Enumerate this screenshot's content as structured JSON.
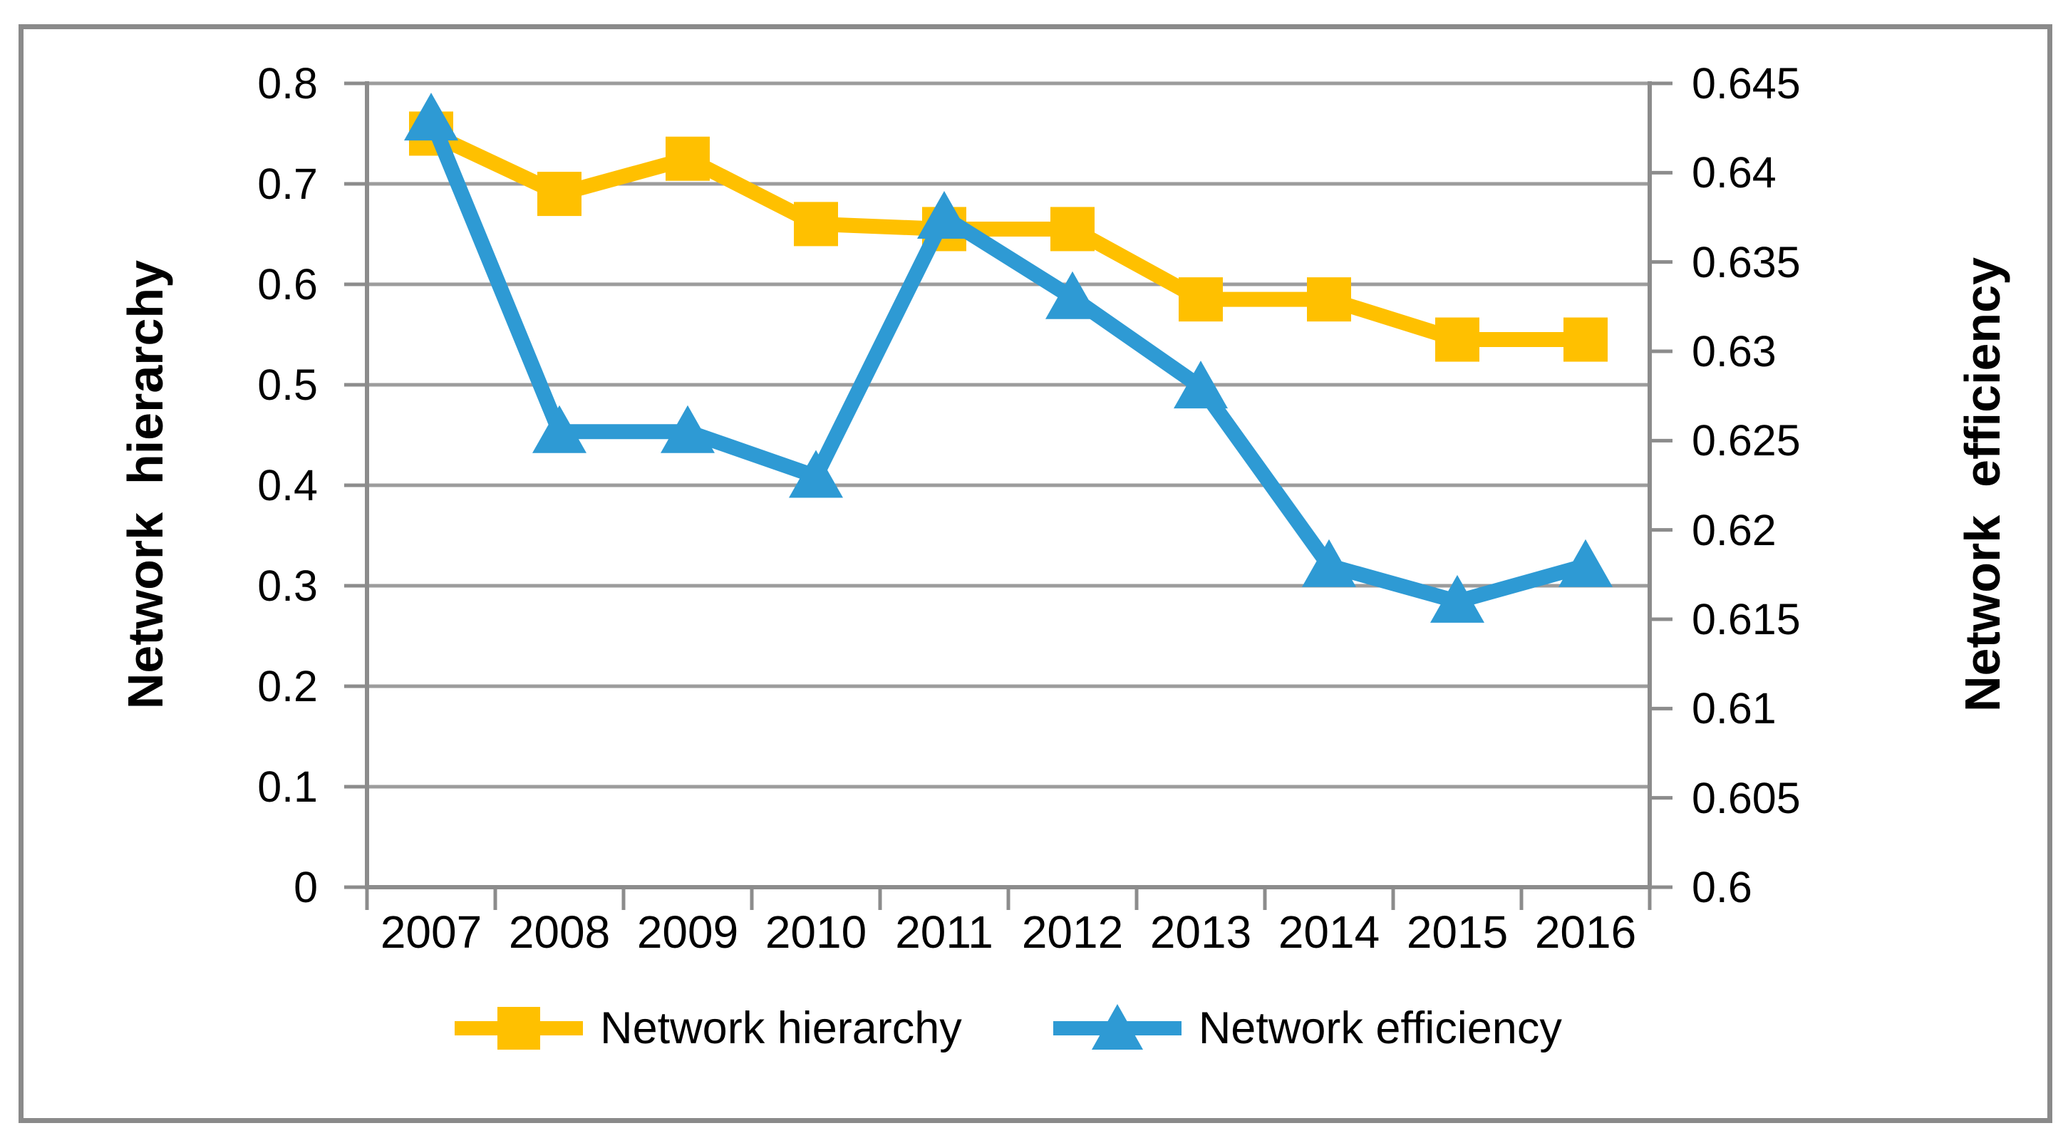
{
  "chart_data": {
    "type": "line",
    "categories": [
      "2007",
      "2008",
      "2009",
      "2010",
      "2011",
      "2012",
      "2013",
      "2014",
      "2015",
      "2016"
    ],
    "series": [
      {
        "name": "Network hierarchy",
        "axis": "left",
        "marker": "square",
        "color": "#FFC000",
        "values": [
          0.75,
          0.69,
          0.725,
          0.66,
          0.655,
          0.655,
          0.585,
          0.585,
          0.545,
          0.545
        ]
      },
      {
        "name": "Network efficiency",
        "axis": "right",
        "marker": "triangle",
        "color": "#2E9AD4",
        "values": [
          0.643,
          0.6255,
          0.6255,
          0.623,
          0.6375,
          0.633,
          0.628,
          0.618,
          0.616,
          0.618
        ]
      }
    ],
    "left_axis": {
      "label": "Network  hierarchy",
      "min": 0,
      "max": 0.8,
      "step": 0.1
    },
    "right_axis": {
      "label": "Network  efficiency",
      "min": 0.6,
      "max": 0.645,
      "step": 0.005
    },
    "legend_position": "bottom",
    "grid": "horizontal"
  },
  "axes": {
    "left": {
      "title": "Network  hierarchy",
      "ticks": [
        "0.8",
        "0.7",
        "0.6",
        "0.5",
        "0.4",
        "0.3",
        "0.2",
        "0.1",
        "0"
      ]
    },
    "right": {
      "title": "Network  efficiency",
      "ticks": [
        "0.645",
        "0.64",
        "0.635",
        "0.63",
        "0.625",
        "0.62",
        "0.615",
        "0.61",
        "0.605",
        "0.6"
      ]
    },
    "x": {
      "labels": [
        "2007",
        "2008",
        "2009",
        "2010",
        "2011",
        "2012",
        "2013",
        "2014",
        "2015",
        "2016"
      ]
    }
  },
  "legend": {
    "items": [
      {
        "label": "Network hierarchy"
      },
      {
        "label": "Network efficiency"
      }
    ]
  },
  "colors": {
    "background": "#FFFFFF",
    "text": "#000000",
    "gridline": "#9C9C9C",
    "axis_line": "#8C8C8C",
    "frame_border": "#8A8A8A",
    "series_hierarchy": "#FFC000",
    "series_efficiency": "#2E9AD4"
  }
}
